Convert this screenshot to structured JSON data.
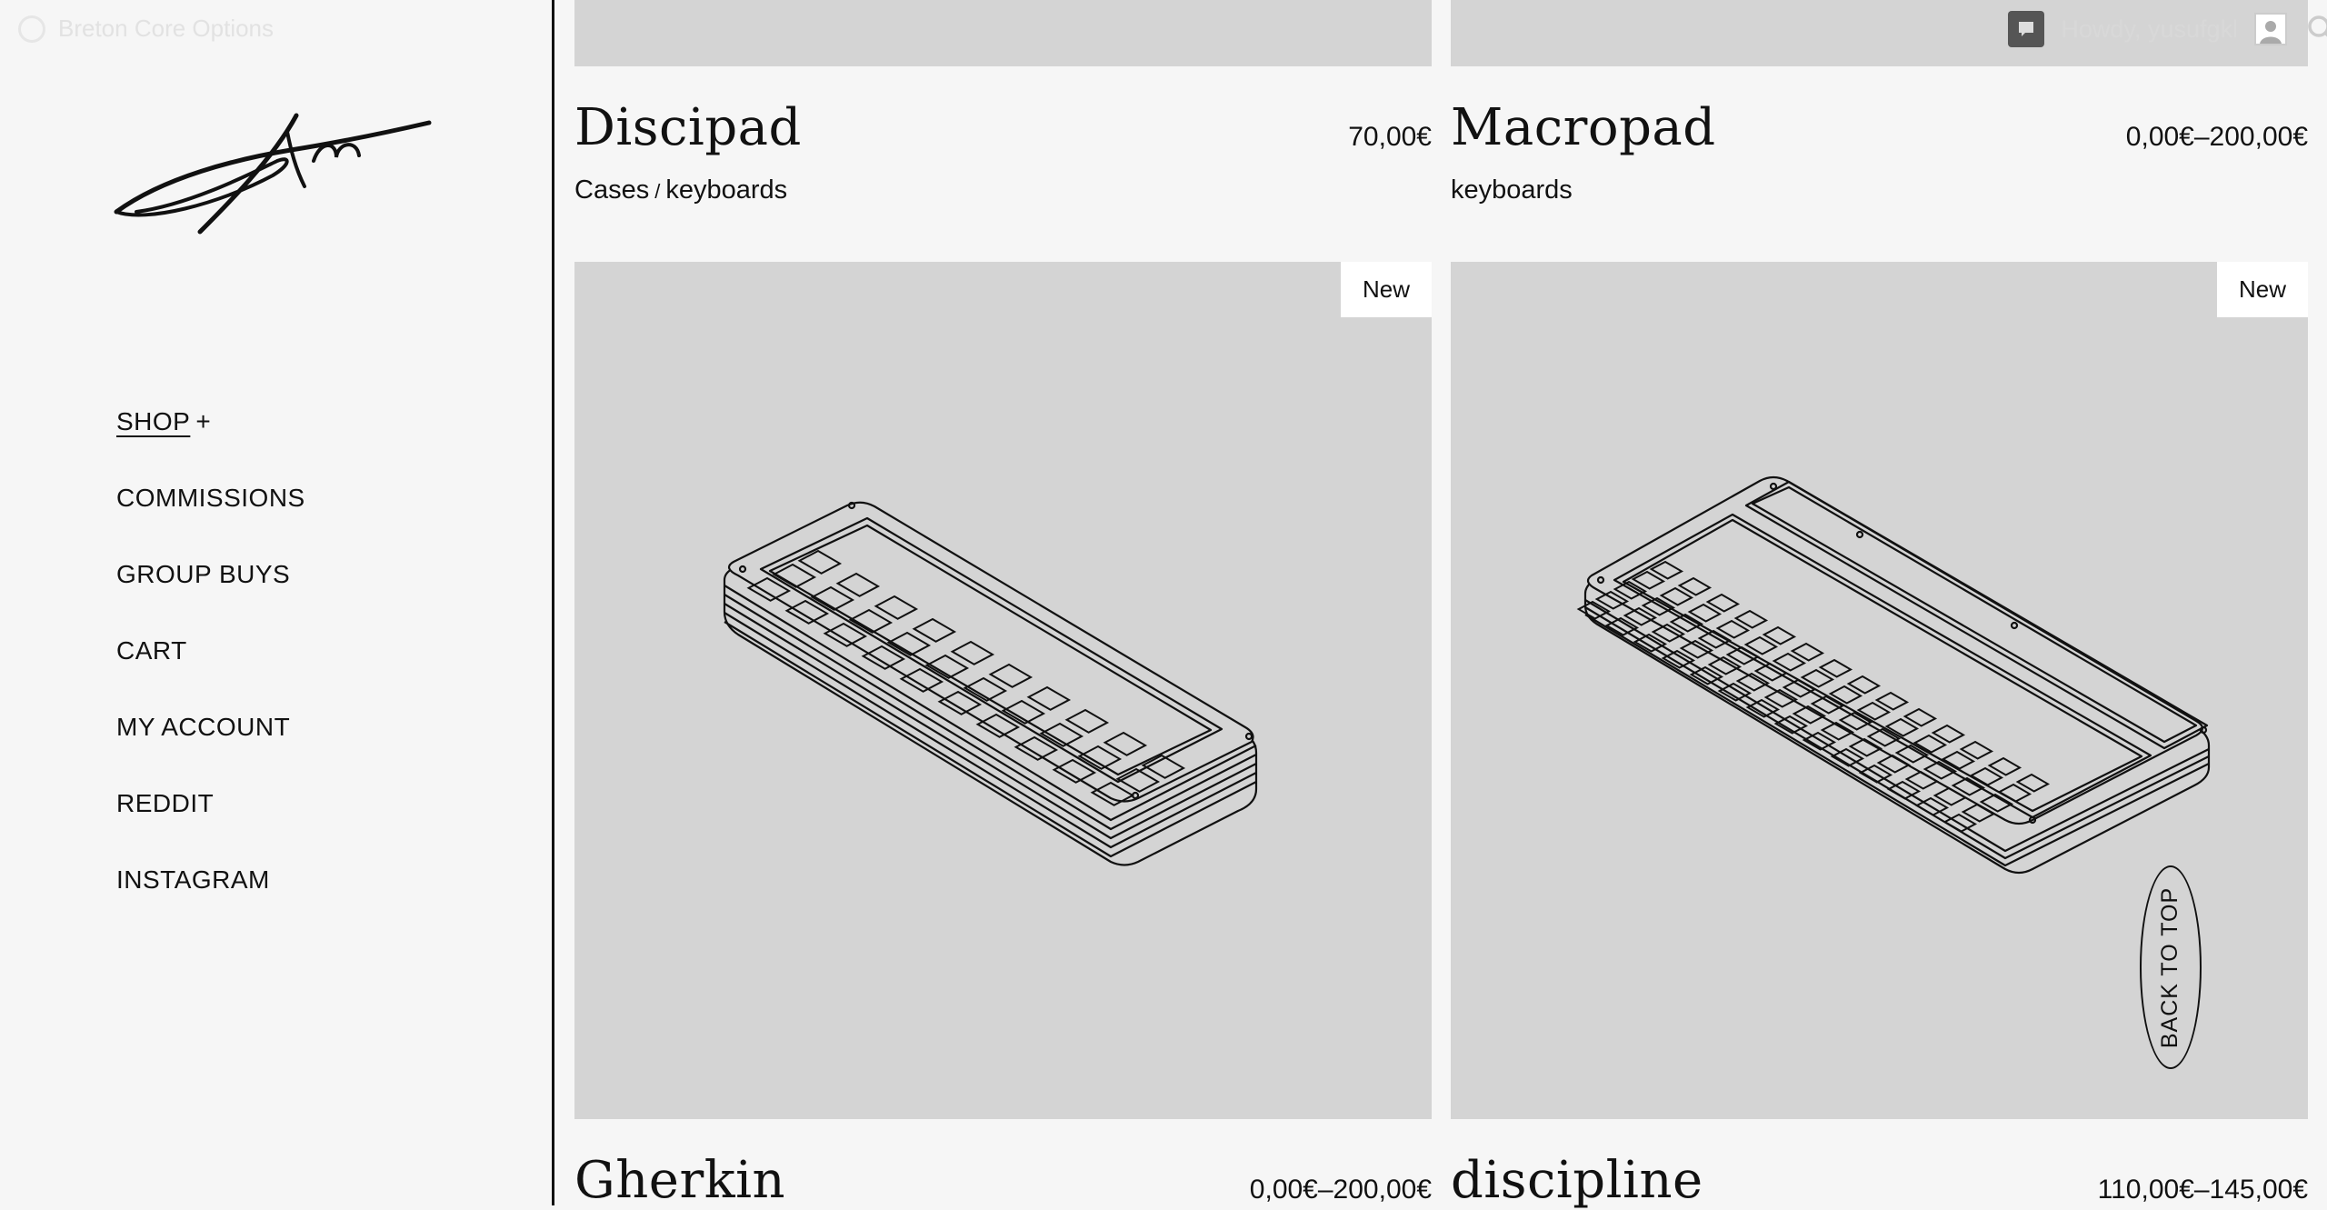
{
  "adminbar": {
    "site_name": "Breton Core Options",
    "greeting": "Howdy, yusufgkl"
  },
  "nav": {
    "shop": "SHOP",
    "shop_plus": "+",
    "items": [
      "COMMISSIONS",
      "GROUP BUYS",
      "CART",
      "MY ACCOUNT",
      "REDDIT",
      "INSTAGRAM"
    ]
  },
  "products": [
    {
      "name": "Discipad",
      "price": "70,00€",
      "categories": [
        "Cases",
        "keyboards"
      ],
      "sep": "/"
    },
    {
      "name": "Macropad",
      "price": "0,00€–200,00€",
      "categories": [
        "keyboards"
      ]
    },
    {
      "name": "Gherkin",
      "price": "0,00€–200,00€",
      "badge": "New"
    },
    {
      "name": "discipline",
      "price": "110,00€–145,00€",
      "badge": "New"
    }
  ],
  "back_to_top": "BACK TO TOP",
  "icons": {
    "site": "wordpress-icon",
    "comments": "comment-icon",
    "user": "avatar-icon",
    "search": "search-icon"
  }
}
